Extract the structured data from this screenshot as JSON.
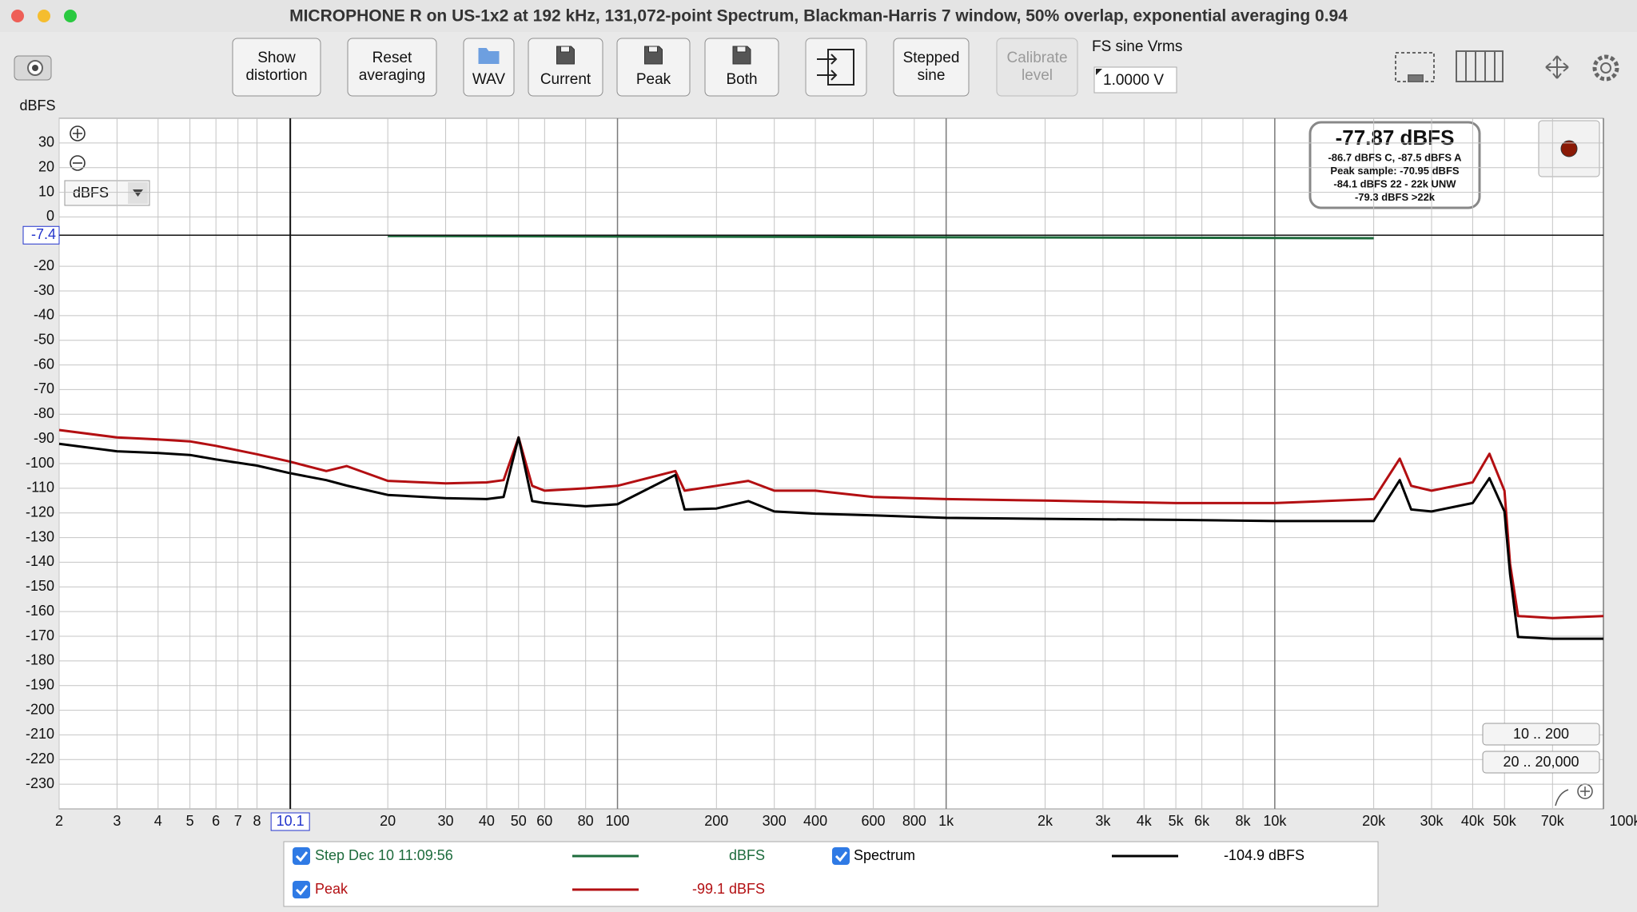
{
  "window": {
    "title": "MICROPHONE R on US-1x2 at 192 kHz, 131,072-point Spectrum, Blackman-Harris 7 window, 50% overlap, exponential averaging 0.94"
  },
  "toolbar": {
    "buttons": [
      {
        "lines": [
          "Show",
          "distortion"
        ]
      },
      {
        "lines": [
          "Reset",
          "averaging"
        ]
      },
      {
        "lines": [
          "WAV"
        ]
      },
      {
        "lines": [
          "Current"
        ]
      },
      {
        "lines": [
          "Peak"
        ]
      },
      {
        "lines": [
          "Both"
        ]
      },
      {
        "lines": [
          "Stepped",
          "sine"
        ]
      },
      {
        "lines": [
          "Calibrate",
          "level"
        ],
        "enabled": false
      }
    ],
    "fs_sine": {
      "label": "FS sine Vrms",
      "value": "1.0000 V"
    }
  },
  "chart_data": {
    "type": "line",
    "y_unit": "dBFS",
    "unit_selector": "dBFS",
    "log_x": true,
    "grid": true,
    "xlim": [
      2,
      100000
    ],
    "ylim": [
      -240,
      40
    ],
    "xticks": [
      2,
      3,
      4,
      5,
      6,
      7,
      8,
      20,
      30,
      40,
      50,
      60,
      80,
      100,
      200,
      300,
      400,
      600,
      800,
      {
        "value": 1000,
        "label": "1k"
      },
      {
        "value": 2000,
        "label": "2k"
      },
      {
        "value": 3000,
        "label": "3k"
      },
      {
        "value": 4000,
        "label": "4k"
      },
      {
        "value": 5000,
        "label": "5k"
      },
      {
        "value": 6000,
        "label": "6k"
      },
      {
        "value": 8000,
        "label": "8k"
      },
      {
        "value": 10000,
        "label": "10k"
      },
      {
        "value": 20000,
        "label": "20k"
      },
      {
        "value": 30000,
        "label": "30k"
      },
      {
        "value": 40000,
        "label": "40k"
      },
      {
        "value": 50000,
        "label": "50k"
      },
      {
        "value": 70000,
        "label": "70k"
      },
      {
        "value": 100000,
        "label": "100kHz"
      }
    ],
    "yticks": [
      30,
      20,
      10,
      0,
      -20,
      -30,
      -40,
      -50,
      -60,
      -70,
      -80,
      -90,
      -100,
      -110,
      -120,
      -130,
      -140,
      -150,
      -160,
      -170,
      -180,
      -190,
      -200,
      -210,
      -220,
      -230
    ],
    "cursor_x": 10.1,
    "cursor_y": -7.4,
    "series": [
      {
        "name": "Step Dec 10 11:09:56",
        "color": "#1d6b3c",
        "reading": "dBFS",
        "x": [
          20,
          20000
        ],
        "values": [
          -7.7,
          -8.6
        ]
      },
      {
        "name": "Peak",
        "color": "#b30f12",
        "reading": "-99.1 dBFS",
        "x": [
          2,
          3,
          4,
          5,
          6,
          8,
          10,
          13,
          15,
          20,
          30,
          40,
          45,
          50,
          55,
          60,
          80,
          100,
          150,
          160,
          200,
          250,
          300,
          400,
          600,
          1000,
          2000,
          5000,
          10000,
          20000,
          24000,
          26000,
          30000,
          40000,
          45000,
          50000,
          52000,
          55000,
          70000,
          100000
        ],
        "values": [
          -86.4,
          -89.4,
          -90.2,
          -91,
          -92.8,
          -96.2,
          -99.1,
          -103,
          -101,
          -107,
          -108,
          -107.6,
          -106.7,
          -89.4,
          -109,
          -111,
          -110,
          -109,
          -103,
          -111,
          -109,
          -107,
          -111,
          -111,
          -113.5,
          -114.4,
          -115,
          -116,
          -116,
          -114.4,
          -98,
          -109,
          -111,
          -107.6,
          -96,
          -111,
          -140.6,
          -161.8,
          -162.6,
          -161.8
        ]
      },
      {
        "name": "Spectrum",
        "color": "#000000",
        "reading": "-104.9 dBFS",
        "x": [
          2,
          3,
          4,
          5,
          6,
          8,
          10,
          13,
          15,
          20,
          30,
          40,
          45,
          50,
          55,
          60,
          80,
          100,
          150,
          160,
          200,
          250,
          300,
          400,
          600,
          1000,
          2000,
          5000,
          10000,
          20000,
          24000,
          26000,
          30000,
          40000,
          45000,
          50000,
          52000,
          55000,
          70000,
          100000
        ],
        "values": [
          -92,
          -95,
          -95.7,
          -96.5,
          -98.3,
          -100.8,
          -103.8,
          -106.7,
          -108.9,
          -112.7,
          -114,
          -114.4,
          -113.5,
          -89.4,
          -115.2,
          -116,
          -117.3,
          -116.5,
          -104.6,
          -118.6,
          -118.2,
          -115.2,
          -119.4,
          -120.3,
          -121,
          -122,
          -122.4,
          -122.8,
          -123.3,
          -123.3,
          -106.7,
          -118.6,
          -119.4,
          -116,
          -105.9,
          -119.4,
          -144.8,
          -170.3,
          -171,
          -171
        ]
      }
    ]
  },
  "readout": {
    "main": "-77.87 dBFS",
    "lines": [
      "-86.7 dBFS C, -87.5 dBFS A",
      "Peak sample: -70.95 dBFS",
      "-84.1 dBFS 22 - 22k UNW",
      "-79.3 dBFS >22k"
    ]
  },
  "range_buttons": [
    "10 .. 200",
    "20 .. 20,000"
  ]
}
